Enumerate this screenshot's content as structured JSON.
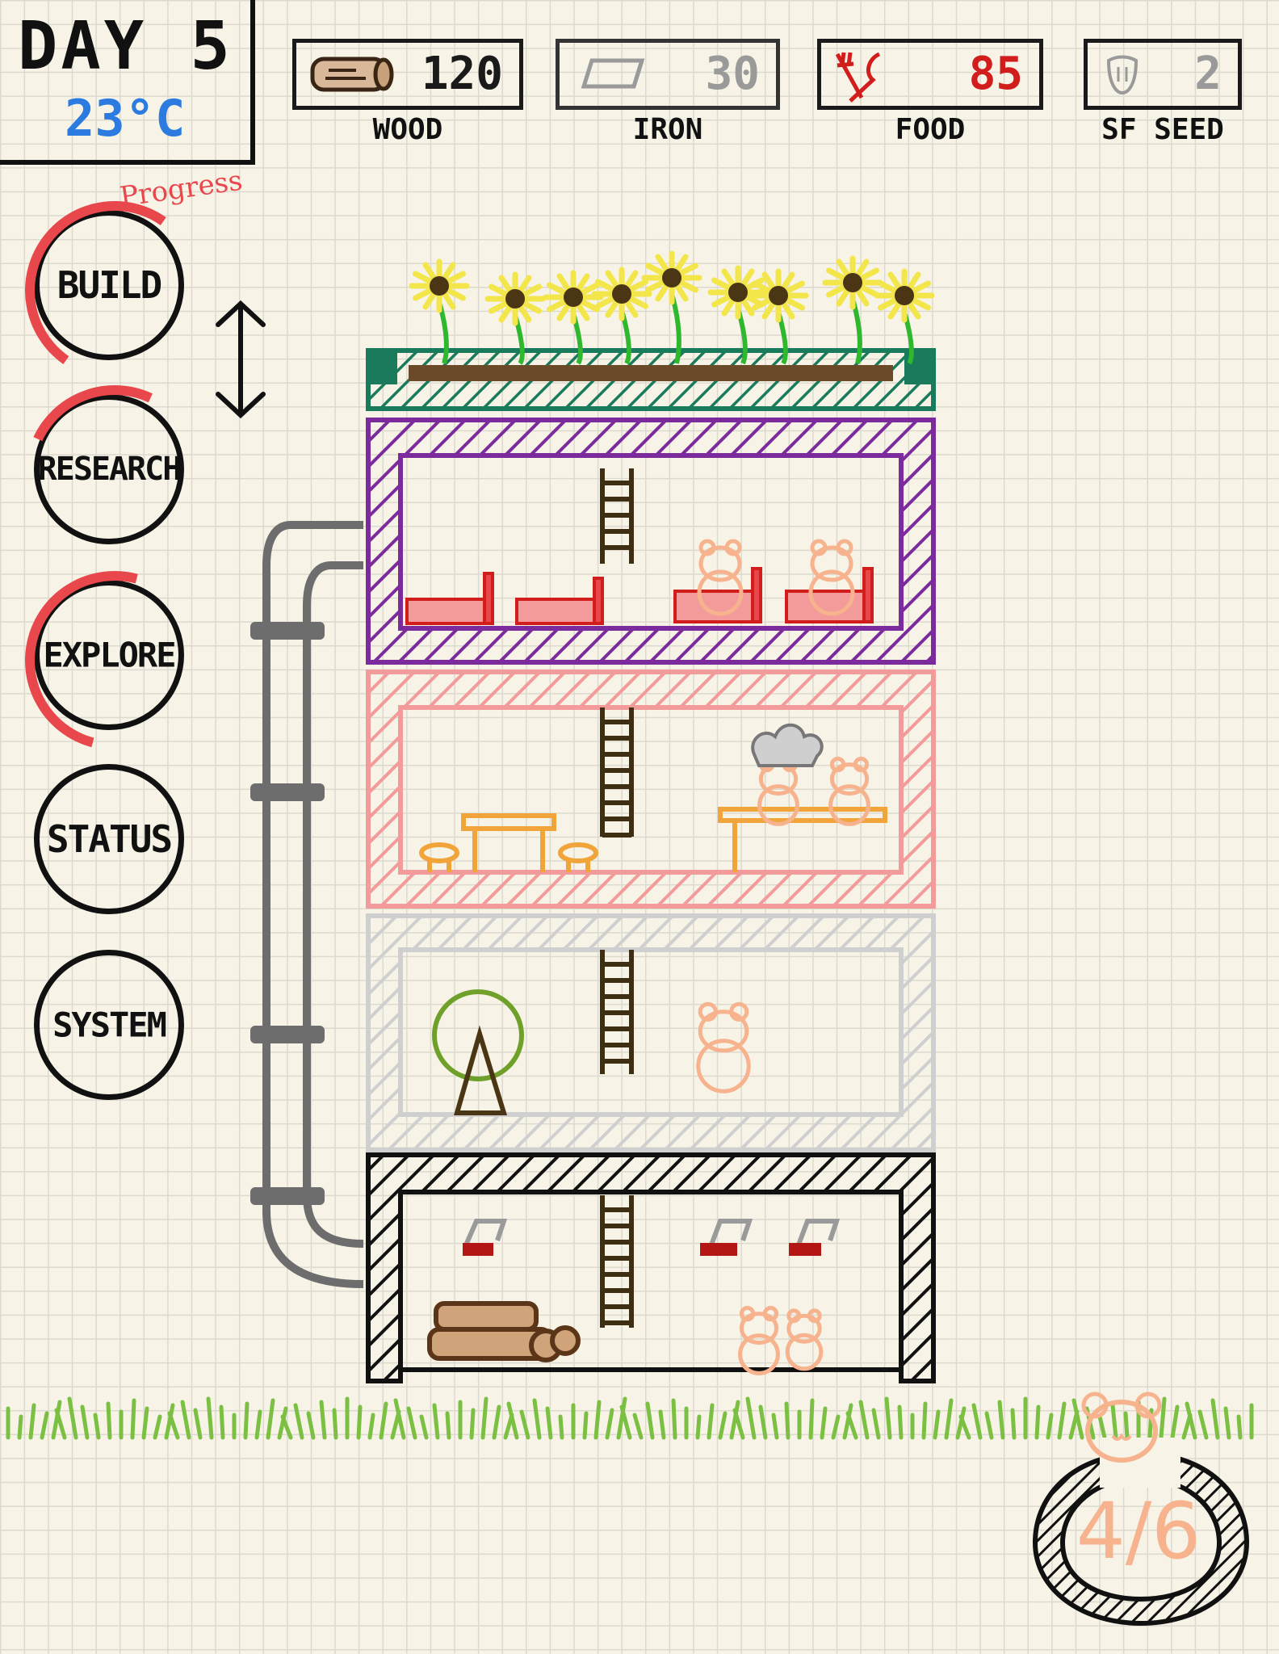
{
  "hud": {
    "day_label": "DAY 5",
    "temperature": "23°C"
  },
  "resources": [
    {
      "name": "WOOD",
      "value": "120",
      "icon": "log-icon",
      "color": "#1a1a1a"
    },
    {
      "name": "IRON",
      "value": "30",
      "icon": "iron-ingot-icon",
      "color": "#9a9a9a"
    },
    {
      "name": "FOOD",
      "value": "85",
      "icon": "utensils-icon",
      "color": "#d21d1d"
    },
    {
      "name": "SF SEED",
      "value": "2",
      "icon": "seed-icon",
      "color": "#9a9a9a"
    }
  ],
  "menu": {
    "progress_label": "Progress",
    "items": [
      {
        "label": "BUILD",
        "has_progress": true
      },
      {
        "label": "RESEARCH",
        "has_progress": true
      },
      {
        "label": "EXPLORE",
        "has_progress": true
      },
      {
        "label": "STATUS",
        "has_progress": false
      },
      {
        "label": "SYSTEM",
        "has_progress": false
      }
    ]
  },
  "population": {
    "text": "4/6",
    "icon": "hamster-face-icon"
  },
  "building": {
    "floors": [
      {
        "name": "roof-garden",
        "color": "#1a7a5c"
      },
      {
        "name": "bedroom",
        "color": "#7c2b9c"
      },
      {
        "name": "kitchen",
        "color": "#f39b9b"
      },
      {
        "name": "gym",
        "color": "#cfcfcf"
      },
      {
        "name": "workshop",
        "color": "#111111"
      }
    ]
  },
  "colors": {
    "accent_red": "#e8474c",
    "temperature_blue": "#2b7be0",
    "grass": "#7bc043",
    "hamster": "#f6b38e"
  }
}
